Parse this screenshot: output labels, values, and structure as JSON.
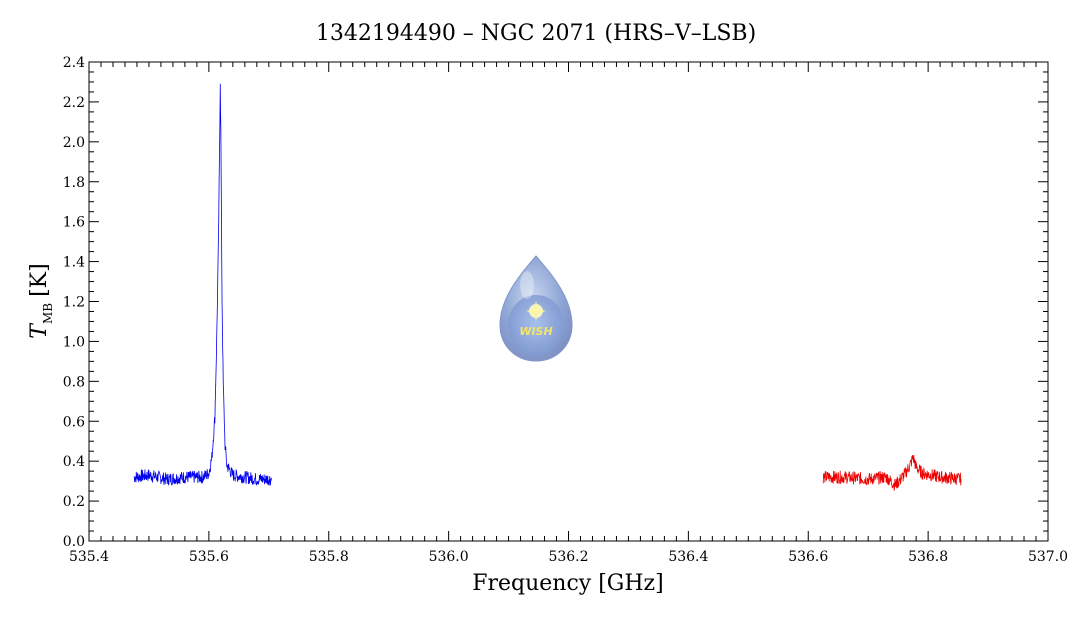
{
  "chart_data": {
    "type": "line",
    "title": "1342194490 – NGC 2071 (HRS–V–LSB)",
    "xlabel": "Frequency [GHz]",
    "ylabel": {
      "main": "T",
      "subscript": "MB",
      "unit": "[K]"
    },
    "xlim": [
      535.4,
      537.0
    ],
    "ylim": [
      0.0,
      2.4
    ],
    "xticks": [
      "535.4",
      "535.6",
      "535.8",
      "536.0",
      "536.2",
      "536.4",
      "536.6",
      "536.8",
      "537.0"
    ],
    "yticks": [
      "0.0",
      "0.2",
      "0.4",
      "0.6",
      "0.8",
      "1.0",
      "1.2",
      "1.4",
      "1.6",
      "1.8",
      "2.0",
      "2.2",
      "2.4"
    ],
    "grid": false,
    "series": [
      {
        "color": "#0000ee",
        "x": [
          535.475,
          535.5,
          535.53,
          535.56,
          535.59,
          535.6,
          535.605,
          535.61,
          535.613,
          535.616,
          535.618,
          535.619,
          535.62,
          535.621,
          535.622,
          535.624,
          535.627,
          535.63,
          535.64,
          535.66,
          535.68,
          535.705
        ],
        "y": [
          0.32,
          0.33,
          0.31,
          0.32,
          0.32,
          0.34,
          0.42,
          0.62,
          1.0,
          1.5,
          2.0,
          2.31,
          2.05,
          1.6,
          1.2,
          0.78,
          0.48,
          0.38,
          0.33,
          0.32,
          0.31,
          0.31
        ]
      },
      {
        "color": "#ee0000",
        "x": [
          536.625,
          536.66,
          536.7,
          536.73,
          536.745,
          536.76,
          536.77,
          536.775,
          536.78,
          536.79,
          536.82,
          536.855
        ],
        "y": [
          0.32,
          0.32,
          0.31,
          0.32,
          0.28,
          0.33,
          0.38,
          0.42,
          0.37,
          0.34,
          0.32,
          0.31
        ]
      }
    ]
  },
  "logo": {
    "text": "WISH"
  }
}
